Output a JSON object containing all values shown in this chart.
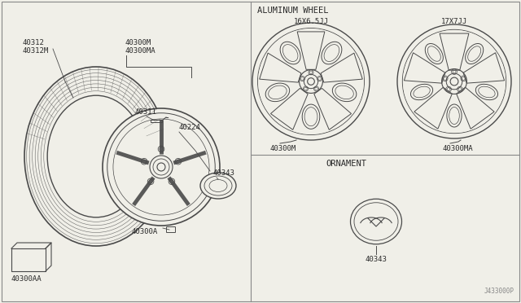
{
  "bg_color": "#f0efe8",
  "line_color": "#4a4a4a",
  "text_color": "#2a2a2a",
  "border_color": "#888888",
  "title": "ALUMINUM WHEEL",
  "subtitle2": "ORNAMENT",
  "label_16x": "16X6.5JJ",
  "label_17x": "17X7JJ",
  "part_40312": "40312",
  "part_40312M": "40312M",
  "part_40300M_top": "40300M",
  "part_40300MA_top": "40300MA",
  "part_40311": "40311",
  "part_40224": "40224",
  "part_40343_right": "40343",
  "part_40300A": "40300A",
  "part_40300AA": "40300AA",
  "part_40300M_lbl": "40300M",
  "part_40300MA_lbl": "40300MA",
  "part_40343_lbl": "40343",
  "part_j433": "J433000P"
}
